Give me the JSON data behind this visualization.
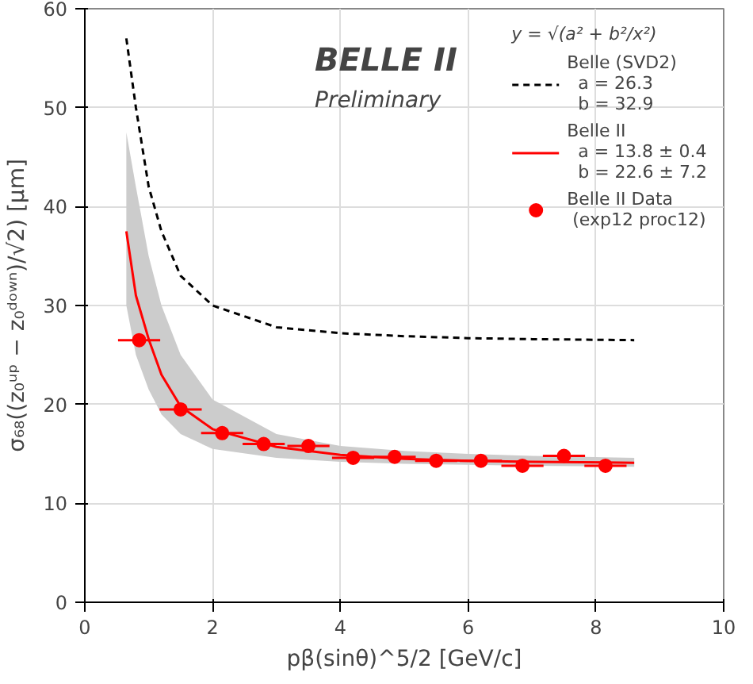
{
  "chart_data": {
    "type": "line",
    "xlabel": "pβ(sinθ)^5/2 [GeV/c]",
    "ylabel": "σ₆₈((z₀ᵘᵖ − z₀ᵈᵒʷⁿ)/√2) [μm]",
    "legend_title": "y = √(a² + b²/x²)",
    "annotations": [
      "BELLE II",
      "Preliminary"
    ],
    "xlim": [
      0,
      10
    ],
    "ylim": [
      0,
      60
    ],
    "xticks": [
      0,
      2,
      4,
      6,
      8,
      10
    ],
    "yticks": [
      0,
      10,
      20,
      30,
      40,
      50,
      60
    ],
    "grid": true,
    "legend": "top right",
    "series": [
      {
        "name": "Belle (SVD2)\n  a = 26.3\n  b = 32.9",
        "color": "#000000",
        "line_style": "dashed",
        "x": [
          0.65,
          0.8,
          1.0,
          1.2,
          1.5,
          2,
          3,
          4,
          5,
          6,
          7,
          8.6
        ],
        "values": [
          57,
          50,
          42,
          37.5,
          33,
          30,
          27.8,
          27.2,
          26.9,
          26.7,
          26.6,
          26.5
        ]
      },
      {
        "name": "Belle II\n  a = 13.8 ± 0.4\n  b = 22.6 ± 7.2",
        "color": "#ff0000",
        "line_style": "solid",
        "x": [
          0.65,
          0.8,
          1.0,
          1.2,
          1.5,
          2,
          3,
          4,
          5,
          6,
          7,
          8.6
        ],
        "values": [
          37.5,
          31,
          26.6,
          23,
          19.8,
          17.5,
          15.7,
          14.9,
          14.5,
          14.3,
          14.2,
          14.1
        ],
        "lower": [
          30,
          25,
          21.5,
          19,
          17,
          15.5,
          14.6,
          14.2,
          14,
          13.9,
          13.8,
          13.7
        ],
        "upper": [
          47.5,
          42,
          35,
          30,
          25,
          20.5,
          17,
          15.8,
          15.3,
          15,
          14.8,
          14.6
        ]
      },
      {
        "name": "Belle II Data\n (exp12 proc12)",
        "type": "scatter",
        "color": "#ff0000",
        "marker": "circle",
        "x": [
          0.85,
          1.5,
          2.15,
          2.8,
          3.5,
          4.2,
          4.85,
          5.5,
          6.2,
          6.85,
          7.5,
          8.15
        ],
        "values": [
          26.5,
          19.5,
          17.1,
          16.0,
          15.8,
          14.6,
          14.7,
          14.3,
          14.3,
          13.8,
          14.8,
          13.8
        ],
        "xerrors": [
          0.33,
          0.33,
          0.33,
          0.33,
          0.33,
          0.33,
          0.33,
          0.33,
          0.33,
          0.33,
          0.33,
          0.33
        ]
      }
    ]
  }
}
